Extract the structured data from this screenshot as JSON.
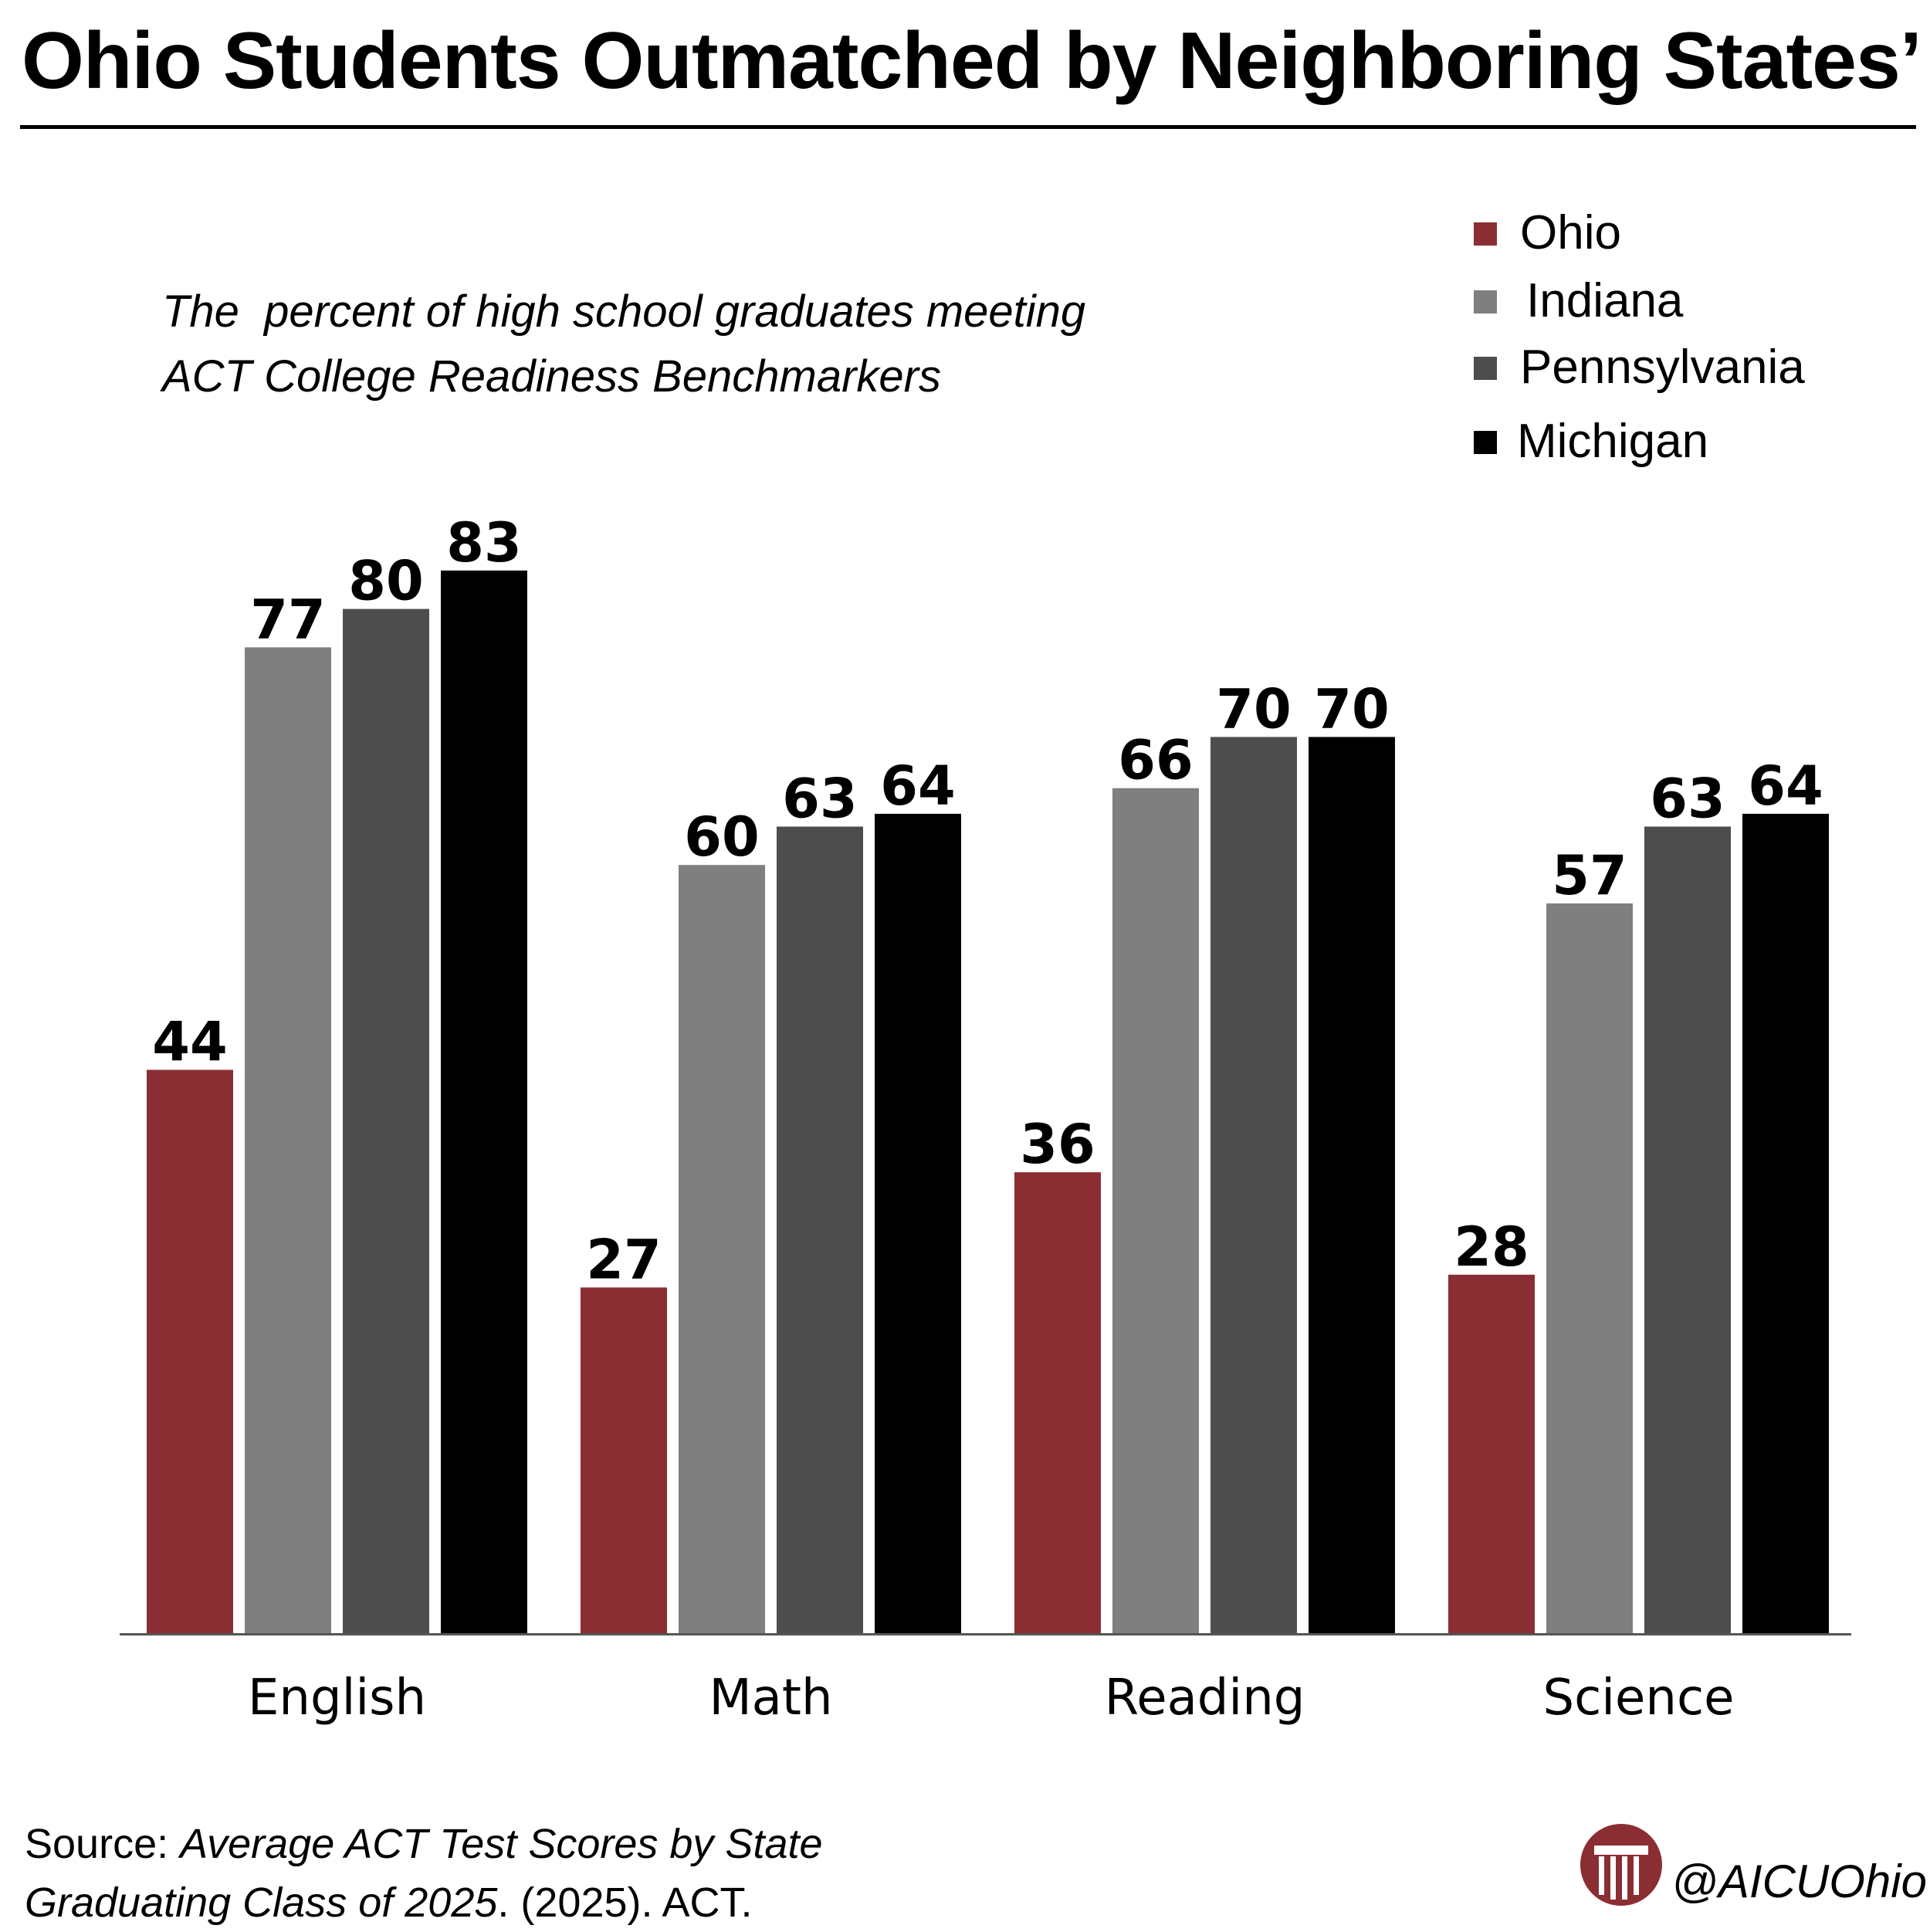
{
  "chart_data": {
    "type": "bar",
    "title": "Ohio Students Outmatched by Neighboring States’",
    "subtitle": "The  percent of high school graduates meeting\nACT College Readiness Benchmarkers",
    "categories": [
      "English",
      "Math",
      "Reading",
      "Science"
    ],
    "series": [
      {
        "name": "Ohio",
        "color": "#8b2e33",
        "values": [
          44,
          27,
          36,
          28
        ]
      },
      {
        "name": "Indiana",
        "color": "#7f7f7f",
        "values": [
          77,
          60,
          66,
          57
        ]
      },
      {
        "name": "Pennsylvania",
        "color": "#4d4d4d",
        "values": [
          80,
          63,
          70,
          63
        ]
      },
      {
        "name": "Michigan",
        "color": "#000000",
        "values": [
          83,
          64,
          70,
          64
        ]
      }
    ],
    "ylim": [
      0,
      100
    ],
    "grid": false,
    "legend": "top-right",
    "xlabel": "",
    "ylabel": ""
  },
  "source": {
    "prefix": "Source: ",
    "citation_italic_1": "Average ACT Test Scores by State",
    "citation_italic_2": "Graduating Class of 2025",
    "suffix": ". (2025). ACT."
  },
  "brand": {
    "handle": "@AICUOhio",
    "logo_icon": "columns-in-circle-icon",
    "accent": "#8b2e33"
  }
}
